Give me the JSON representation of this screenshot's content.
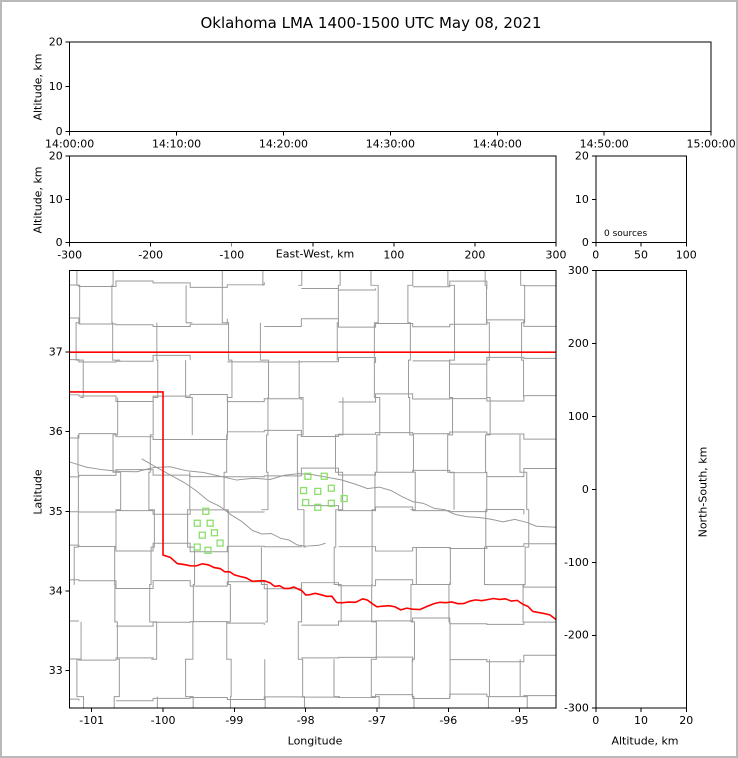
{
  "title": "Oklahoma LMA 1400-1500 UTC May 08, 2021",
  "colors": {
    "state_border": "#ff0000",
    "county_line": "#9a9a9a",
    "station_marker": "#8ae06a",
    "axis": "#000000",
    "frame": "#b9b9b9"
  },
  "chart_data": [
    {
      "id": "time_height",
      "type": "scatter",
      "xlabel": "",
      "ylabel": "Altitude, km",
      "xlim": [
        0,
        3600
      ],
      "ylim": [
        0,
        20
      ],
      "xticks": {
        "values": [
          0,
          600,
          1200,
          1800,
          2400,
          3000,
          3600
        ],
        "labels": [
          "14:00:00",
          "14:10:00",
          "14:20:00",
          "14:30:00",
          "14:40:00",
          "14:50:00",
          "15:00:00"
        ]
      },
      "yticks": {
        "values": [
          0,
          10,
          20
        ],
        "labels": [
          "0",
          "10",
          "20"
        ]
      },
      "points": []
    },
    {
      "id": "ew_height",
      "type": "scatter",
      "xlabel": "East-West, km",
      "ylabel": "Altitude, km",
      "xlim": [
        -300,
        300
      ],
      "ylim": [
        0,
        20
      ],
      "xticks": {
        "values": [
          -300,
          -200,
          -100,
          0,
          100,
          200,
          300
        ],
        "labels": [
          "-300",
          "-200",
          "-100",
          "",
          "100",
          "200",
          "300"
        ]
      },
      "yticks": {
        "values": [
          0,
          10,
          20
        ],
        "labels": [
          "0",
          "10",
          "20"
        ]
      },
      "points": []
    },
    {
      "id": "alt_histogram",
      "type": "line",
      "annotation": "0 sources",
      "xlim": [
        0,
        100
      ],
      "ylim": [
        0,
        20
      ],
      "xticks": {
        "values": [
          0,
          50,
          100
        ],
        "labels": [
          "0",
          "50",
          "100"
        ]
      },
      "yticks": {
        "values": [
          0,
          10,
          20
        ],
        "labels": [
          "0",
          "10",
          "20"
        ]
      },
      "points": []
    },
    {
      "id": "plan_view",
      "type": "scatter",
      "xlabel": "Longitude",
      "ylabel": "Latitude",
      "xlim": [
        -101.31,
        -94.49
      ],
      "ylim": [
        32.525,
        38.025
      ],
      "xticks": {
        "values": [
          -101,
          -100,
          -99,
          -98,
          -97,
          -96,
          -95
        ],
        "labels": [
          "-101",
          "-100",
          "-99",
          "-98",
          "-97",
          "-96",
          "-95"
        ]
      },
      "yticks": {
        "values": [
          33,
          34,
          35,
          36,
          37
        ],
        "labels": [
          "33",
          "34",
          "35",
          "36",
          "37"
        ]
      },
      "stations": [
        [
          -97.97,
          35.44
        ],
        [
          -97.74,
          35.44
        ],
        [
          -98.03,
          35.26
        ],
        [
          -97.83,
          35.25
        ],
        [
          -97.64,
          35.29
        ],
        [
          -98.0,
          35.11
        ],
        [
          -97.83,
          35.05
        ],
        [
          -97.64,
          35.1
        ],
        [
          -97.46,
          35.16
        ],
        [
          -99.4,
          35.0
        ],
        [
          -99.52,
          34.85
        ],
        [
          -99.34,
          34.85
        ],
        [
          -99.45,
          34.7
        ],
        [
          -99.28,
          34.73
        ],
        [
          -99.52,
          34.55
        ],
        [
          -99.37,
          34.51
        ],
        [
          -99.2,
          34.6
        ]
      ],
      "state_boundary": {
        "north_lat": 37.0,
        "panhandle_lat": 36.5,
        "panhandle_lon": -100.0,
        "red_river": [
          [
            -100.0,
            34.45
          ],
          [
            -99.7,
            34.33
          ],
          [
            -99.45,
            34.34
          ],
          [
            -99.2,
            34.28
          ],
          [
            -99.0,
            34.2
          ],
          [
            -98.75,
            34.12
          ],
          [
            -98.5,
            34.1
          ],
          [
            -98.3,
            34.03
          ],
          [
            -98.1,
            34.02
          ],
          [
            -97.95,
            33.95
          ],
          [
            -97.7,
            33.93
          ],
          [
            -97.5,
            33.85
          ],
          [
            -97.2,
            33.9
          ],
          [
            -97.0,
            33.8
          ],
          [
            -96.75,
            33.8
          ],
          [
            -96.5,
            33.77
          ],
          [
            -96.2,
            33.84
          ],
          [
            -95.95,
            33.86
          ],
          [
            -95.7,
            33.87
          ],
          [
            -95.45,
            33.89
          ],
          [
            -95.2,
            33.9
          ],
          [
            -94.95,
            33.83
          ],
          [
            -94.75,
            33.73
          ],
          [
            -94.49,
            33.64
          ]
        ]
      },
      "points": []
    },
    {
      "id": "ns_height",
      "type": "scatter",
      "xlabel": "Altitude, km",
      "ylabel_right": "North-South, km",
      "xlim": [
        0,
        20
      ],
      "ylim": [
        -300,
        300
      ],
      "xticks": {
        "values": [
          0,
          10,
          20
        ],
        "labels": [
          "0",
          "10",
          "20"
        ]
      },
      "yticks": {
        "values": [
          300,
          200,
          100,
          0,
          -100,
          -200,
          -300
        ],
        "labels": [
          "300",
          "200",
          "100",
          "0",
          "-100",
          "-200",
          "-300"
        ]
      },
      "points": []
    }
  ]
}
